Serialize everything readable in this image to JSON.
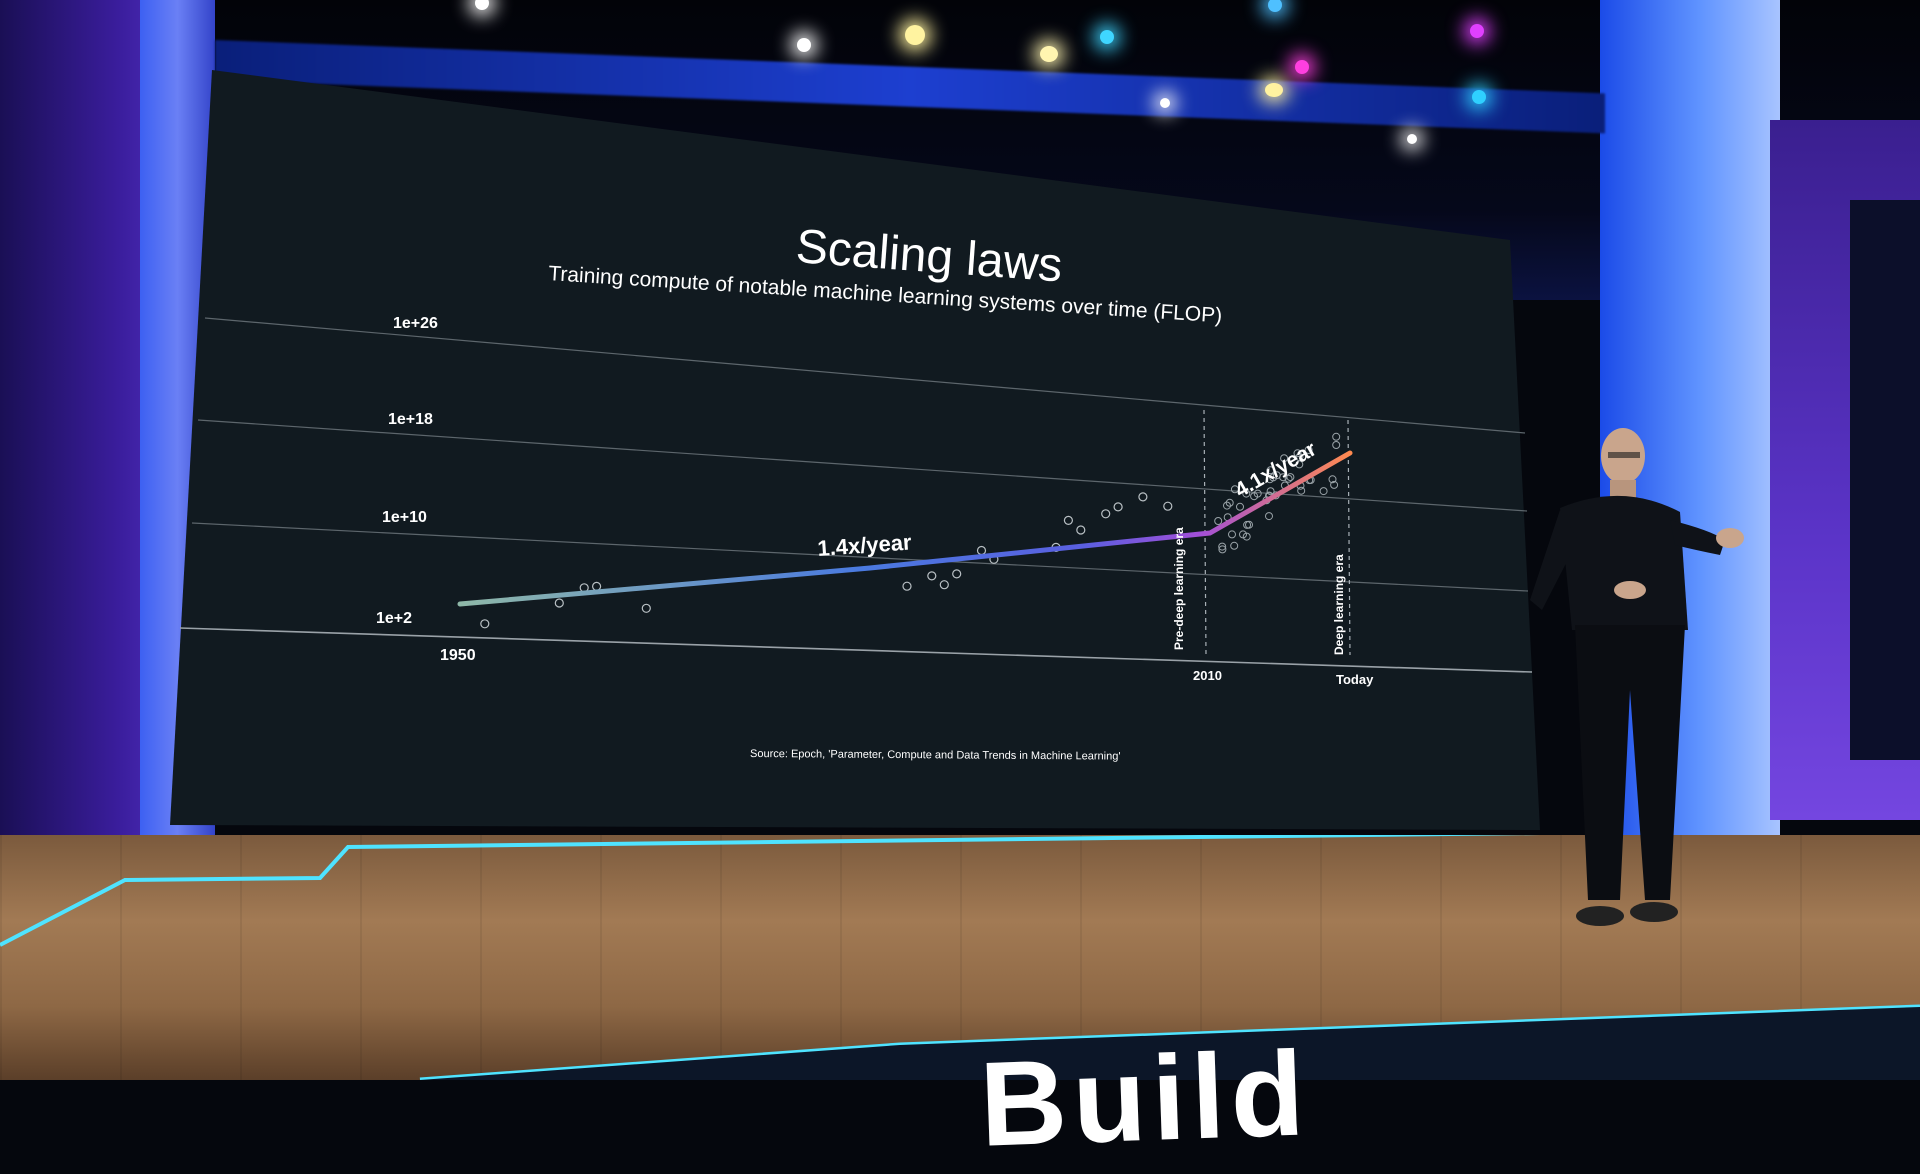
{
  "slide": {
    "title": "Scaling laws",
    "subtitle": "Training compute of notable machine learning systems over time (FLOP)",
    "source": "Source: Epoch, 'Parameter, Compute and Data Trends in Machine Learning'",
    "era_pre": "Pre-deep learning era",
    "era_deep": "Deep learning era"
  },
  "chart_data": {
    "type": "scatter",
    "title": "Scaling laws",
    "subtitle": "Training compute of notable machine learning systems over time (FLOP)",
    "xlabel": "",
    "ylabel": "",
    "y_scale": "log",
    "y_ticks": [
      "1e+2",
      "1e+10",
      "1e+18",
      "1e+26"
    ],
    "x_ticks": [
      "1950",
      "2010",
      "Today"
    ],
    "annotations": [
      "1.4x/year",
      "4.1x/year"
    ],
    "trend_segments": [
      {
        "name": "1.4x/year",
        "from": "1950",
        "to": "2010"
      },
      {
        "name": "4.1x/year",
        "from": "2010",
        "to": "Today"
      }
    ],
    "points": [
      {
        "x": 1952,
        "y": 100
      },
      {
        "x": 1958,
        "y": 3000
      },
      {
        "x": 1960,
        "y": 50000
      },
      {
        "x": 1961,
        "y": 60000
      },
      {
        "x": 1965,
        "y": 500
      },
      {
        "x": 1986,
        "y": 5000
      },
      {
        "x": 1988,
        "y": 40000
      },
      {
        "x": 1989,
        "y": 5000
      },
      {
        "x": 1990,
        "y": 50000
      },
      {
        "x": 1992,
        "y": 8000000
      },
      {
        "x": 1993,
        "y": 1000000
      },
      {
        "x": 1998,
        "y": 10000000
      },
      {
        "x": 1999,
        "y": 5000000000
      },
      {
        "x": 2000,
        "y": 500000000
      },
      {
        "x": 2002,
        "y": 20000000000
      },
      {
        "x": 2003,
        "y": 100000000000
      },
      {
        "x": 2005,
        "y": 1000000000000
      },
      {
        "x": 2007,
        "y": 100000000000
      }
    ],
    "deep_cluster_count": 45
  },
  "icons": {
    "presenter": "person-icon"
  },
  "colors": {
    "screen_bg": "#121b22",
    "trend_start": "#8fb8a8",
    "trend_mid": "#4a6fe0",
    "trend_knee": "#9b4fd8",
    "trend_end": "#ff8a50",
    "text": "#ffffff"
  }
}
